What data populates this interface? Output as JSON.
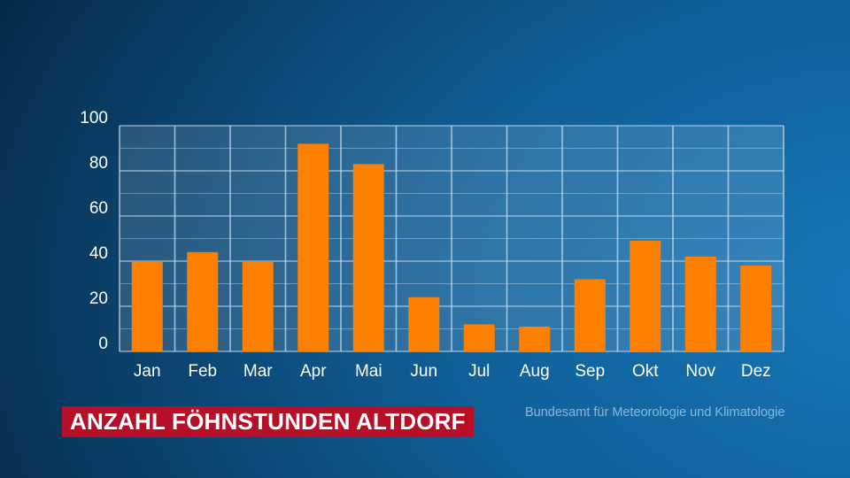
{
  "colors": {
    "bar": "#ff7f00",
    "caption_background": "#b80f28",
    "grid": "#c9dff0",
    "text": "#ffffff",
    "source_text": "#8fb8d8"
  },
  "caption": "ANZAHL FÖHNSTUNDEN ALTDORF",
  "source": "Bundesamt für Meteorologie und Klimatologie",
  "chart_data": {
    "type": "bar",
    "categories": [
      "Jan",
      "Feb",
      "Mar",
      "Apr",
      "Mai",
      "Jun",
      "Jul",
      "Aug",
      "Sep",
      "Okt",
      "Nov",
      "Dez"
    ],
    "values": [
      40,
      44,
      40,
      92,
      83,
      24,
      12,
      11,
      32,
      49,
      42,
      38
    ],
    "title": "ANZAHL FÖHNSTUNDEN ALTDORF",
    "xlabel": "",
    "ylabel": "",
    "ylim": [
      0,
      100
    ],
    "yticks": [
      0,
      20,
      40,
      60,
      80,
      100
    ],
    "grid": true
  }
}
